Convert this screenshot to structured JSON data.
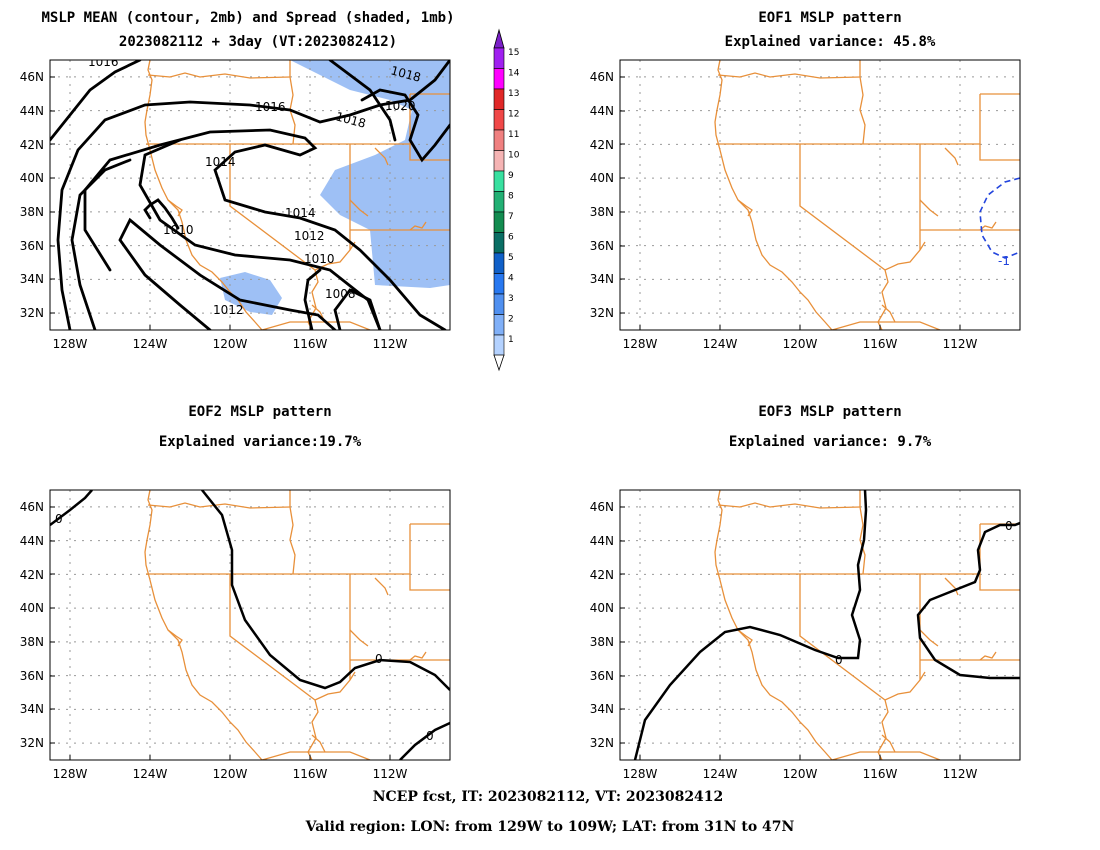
{
  "panels": [
    {
      "title1": "MSLP MEAN (contour, 2mb) and Spread (shaded, 1mb)",
      "title2": "2023082112 + 3day (VT:2023082412)",
      "contour_labels": [
        "1016",
        "1016",
        "1018",
        "1018",
        "1020",
        "1014",
        "1014",
        "1012",
        "1010",
        "1010",
        "1008",
        "1012"
      ]
    },
    {
      "title1": "EOF1 MSLP pattern",
      "title2": "Explained variance: 45.8%",
      "contour_labels": [
        "-1"
      ]
    },
    {
      "title1": "EOF2 MSLP pattern",
      "title2": "Explained variance:19.7%",
      "contour_labels": [
        "0",
        "0",
        "0"
      ]
    },
    {
      "title1": "EOF3 MSLP pattern",
      "title2": "Explained variance: 9.7%",
      "contour_labels": [
        "0",
        "0"
      ]
    }
  ],
  "lat_labels": [
    "46N",
    "44N",
    "42N",
    "40N",
    "38N",
    "36N",
    "34N",
    "32N"
  ],
  "lon_labels": [
    "128W",
    "124W",
    "120W",
    "116W",
    "112W"
  ],
  "colorbar": {
    "labels": [
      "15",
      "14",
      "13",
      "12",
      "11",
      "10",
      "9",
      "8",
      "7",
      "6",
      "5",
      "4",
      "3",
      "2",
      "1"
    ],
    "colors": [
      "#a020f0",
      "#ff00ff",
      "#e02828",
      "#f04848",
      "#f08080",
      "#f5b4b4",
      "#38e0a0",
      "#22b074",
      "#138c50",
      "#0a6e64",
      "#1060c8",
      "#2878f0",
      "#5090f0",
      "#80b0f8",
      "#b4d2ff"
    ]
  },
  "colors": {
    "state_lines": "#e8903a",
    "spread_fill": "#9ec0f5",
    "negative_contour": "#2244dd",
    "grid": "#999999"
  },
  "footer": {
    "line1": "NCEP fcst, IT: 2023082112, VT: 2023082412",
    "line2": "Valid region: LON: from 129W to 109W; LAT: from 31N to 47N"
  }
}
